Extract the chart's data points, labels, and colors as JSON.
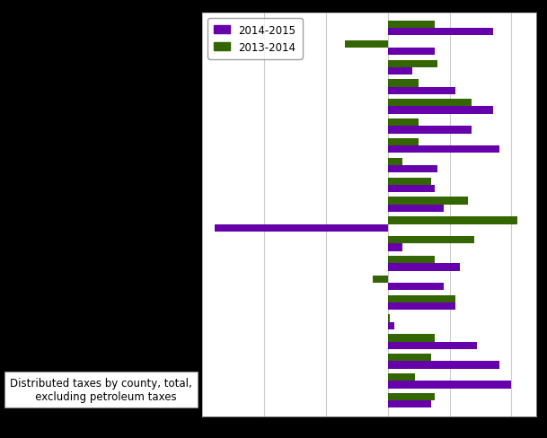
{
  "legend_labels": [
    "2014-2015",
    "2013-2014"
  ],
  "legend_colors": [
    "#6600aa",
    "#336600"
  ],
  "series_2014_2015": [
    8.5,
    3.8,
    2.0,
    5.5,
    8.5,
    6.8,
    9.0,
    4.0,
    3.8,
    4.5,
    -14.0,
    1.2,
    5.8,
    4.5,
    5.5,
    0.5,
    7.2,
    9.0,
    10.0,
    3.5
  ],
  "series_2013_2014": [
    3.8,
    -3.5,
    4.0,
    2.5,
    6.8,
    2.5,
    2.5,
    1.2,
    3.5,
    6.5,
    10.5,
    7.0,
    3.8,
    -1.2,
    5.5,
    0.2,
    3.8,
    3.5,
    2.2,
    3.8
  ],
  "annotation": "Distributed taxes by county, total,\n   excluding petroleum taxes",
  "xlim": [
    -15,
    12
  ],
  "bar_height": 0.38,
  "grid_color": "#cccccc",
  "plot_bg": "#ffffff"
}
